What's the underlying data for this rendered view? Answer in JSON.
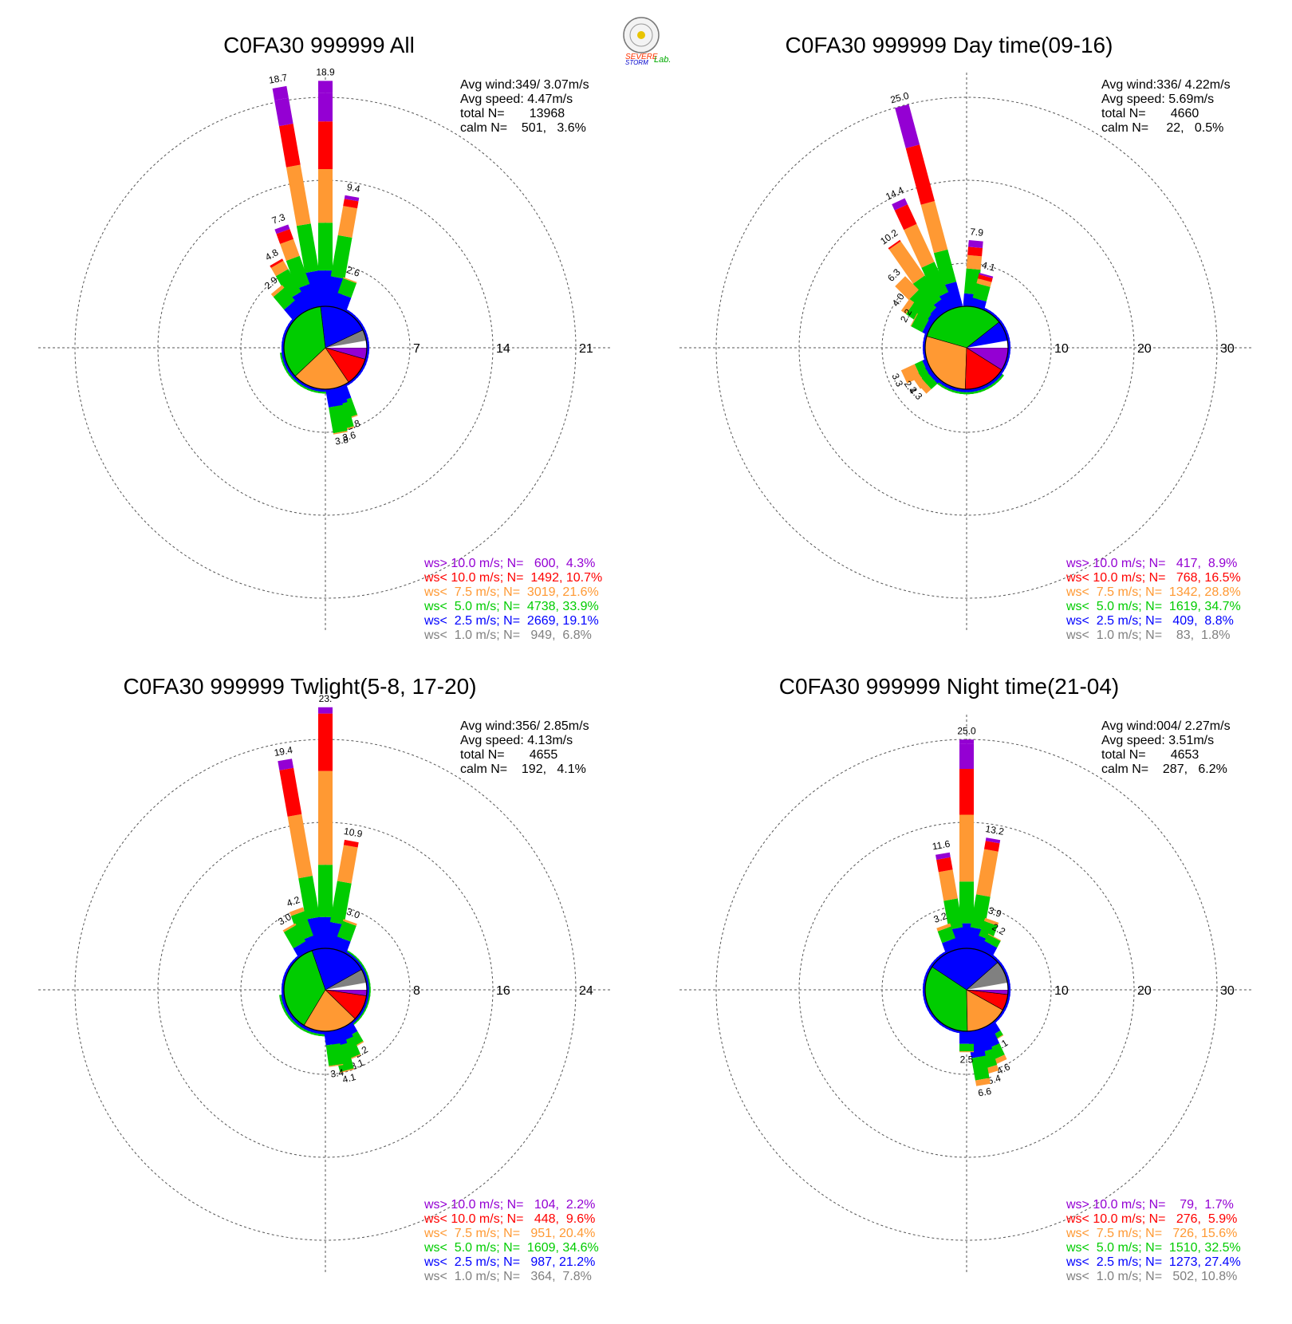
{
  "logo": {
    "line1": "SEVERE",
    "line2": "STORM",
    "line3": "Lab."
  },
  "colors": {
    "purple": "#9400d3",
    "red": "#ff0000",
    "orange": "#ff9933",
    "green": "#00cc00",
    "blue": "#0000ff",
    "gray": "#808080",
    "grid": "#555555",
    "text": "#000000"
  },
  "chart_data": [
    {
      "type": "wind-rose",
      "title": "C0FA30 999999 All",
      "stats": [
        "Avg wind:349/ 3.07m/s",
        "Avg speed: 4.47m/s",
        "total N=       13968",
        "calm N=    501,   3.6%"
      ],
      "ring_labels": [
        "7",
        "14",
        "21"
      ],
      "rmax": 21,
      "bins": [
        {
          "label": "ws> 10.0 m/s; N=   600,  4.3%",
          "color": "purple"
        },
        {
          "label": "ws< 10.0 m/s; N=  1492, 10.7%",
          "color": "red"
        },
        {
          "label": "ws<  7.5 m/s; N=  3019, 21.6%",
          "color": "orange"
        },
        {
          "label": "ws<  5.0 m/s; N=  4738, 33.9%",
          "color": "green"
        },
        {
          "label": "ws<  2.5 m/s; N=  2669, 19.1%",
          "color": "blue"
        },
        {
          "label": "ws<  1.0 m/s; N=   949,  6.8%",
          "color": "gray"
        }
      ],
      "pie": [
        6.8,
        19.1,
        33.9,
        21.6,
        10.7,
        4.3
      ],
      "bars": [
        {
          "dir": 350,
          "segments": [
            3.0,
            4.0,
            5.0,
            3.5,
            2.2,
            1.0
          ],
          "label": "18.7"
        },
        {
          "dir": 0,
          "segments": [
            3.0,
            4.0,
            4.5,
            4.0,
            2.4,
            1.0
          ],
          "label": "18.9"
        },
        {
          "dir": 10,
          "segments": [
            2.5,
            3.5,
            2.5,
            0.6,
            0.3
          ],
          "label": "9.4"
        },
        {
          "dir": 20,
          "segments": [
            1.2,
            1.3,
            0.1
          ],
          "label": "2.6"
        },
        {
          "dir": 340,
          "segments": [
            2.0,
            2.5,
            1.5,
            0.9,
            0.4
          ],
          "label": "7.3"
        },
        {
          "dir": 330,
          "segments": [
            1.6,
            2.2,
            0.8,
            0.2
          ],
          "label": "4.8"
        },
        {
          "dir": 320,
          "segments": [
            1.2,
            1.4,
            0.3
          ],
          "label": "2.9"
        },
        {
          "dir": 160,
          "segments": [
            1.2,
            1.5,
            0.1
          ],
          "label": "2.8"
        },
        {
          "dir": 165,
          "segments": [
            1.4,
            2.1,
            0.1
          ],
          "label": "3.6"
        },
        {
          "dir": 170,
          "segments": [
            1.5,
            2.2,
            0.1
          ],
          "label": "3.8"
        }
      ],
      "minor": [
        {
          "from": 25,
          "to": 150,
          "step": 5,
          "value": 0.4
        },
        {
          "from": 175,
          "to": 260,
          "step": 5,
          "value": 0.6
        },
        {
          "from": 260,
          "to": 315,
          "step": 5,
          "value": 0.3
        }
      ]
    },
    {
      "type": "wind-rose",
      "title": "C0FA30 999999 Day time(09-16)",
      "stats": [
        "Avg wind:336/ 4.22m/s",
        "Avg speed: 5.69m/s",
        "total N=       4660",
        "calm N=     22,   0.5%"
      ],
      "ring_labels": [
        "10",
        "20",
        "30"
      ],
      "rmax": 30,
      "bins": [
        {
          "label": "ws> 10.0 m/s; N=   417,  8.9%",
          "color": "purple"
        },
        {
          "label": "ws< 10.0 m/s; N=   768, 16.5%",
          "color": "red"
        },
        {
          "label": "ws<  7.5 m/s; N=  1342, 28.8%",
          "color": "orange"
        },
        {
          "label": "ws<  5.0 m/s; N=  1619, 34.7%",
          "color": "green"
        },
        {
          "label": "ws<  2.5 m/s; N=   409,  8.8%",
          "color": "blue"
        },
        {
          "label": "ws<  1.0 m/s; N=    83,  1.8%",
          "color": "gray"
        }
      ],
      "pie": [
        1.8,
        8.8,
        34.7,
        28.8,
        16.5,
        8.9
      ],
      "bars": [
        {
          "dir": 345,
          "segments": [
            3.0,
            4.0,
            6.0,
            7.0,
            5.0
          ],
          "label": "25.0"
        },
        {
          "dir": 335,
          "segments": [
            2.0,
            4.0,
            5.0,
            2.6,
            0.8
          ],
          "label": "14.4"
        },
        {
          "dir": 325,
          "segments": [
            1.5,
            3.5,
            5.0,
            0.2
          ],
          "label": "10.2"
        },
        {
          "dir": 315,
          "segments": [
            1.0,
            3.0,
            2.3
          ],
          "label": "6.3"
        },
        {
          "dir": 305,
          "segments": [
            0.8,
            2.5,
            0.7
          ],
          "label": "4.0"
        },
        {
          "dir": 298,
          "segments": [
            0.6,
            1.5,
            0.1
          ],
          "label": "2.2"
        },
        {
          "dir": 5,
          "segments": [
            1.5,
            3.0,
            1.6,
            1.0,
            0.8
          ],
          "label": "7.9"
        },
        {
          "dir": 15,
          "segments": [
            1.0,
            1.8,
            0.6,
            0.5,
            0.2
          ],
          "label": "4.1"
        },
        {
          "dir": 245,
          "segments": [
            0.5,
            1.0,
            1.8
          ],
          "label": "3.3"
        },
        {
          "dir": 235,
          "segments": [
            0.5,
            1.0,
            0.9
          ],
          "label": "2.4"
        },
        {
          "dir": 228,
          "segments": [
            0.5,
            1.0,
            0.8
          ],
          "label": "2.3"
        }
      ],
      "minor": [
        {
          "from": 25,
          "to": 130,
          "step": 5,
          "value": 0.3
        },
        {
          "from": 130,
          "to": 220,
          "step": 5,
          "value": 1.0
        },
        {
          "from": 250,
          "to": 290,
          "step": 5,
          "value": 0.5
        }
      ]
    },
    {
      "type": "wind-rose",
      "title": "C0FA30 999999 Twlight(5-8, 17-20)",
      "stats": [
        "Avg wind:356/ 2.85m/s",
        "Avg speed: 4.13m/s",
        "total N=       4655",
        "calm N=    192,   4.1%"
      ],
      "ring_labels": [
        "8",
        "16",
        "24"
      ],
      "rmax": 24,
      "bins": [
        {
          "label": "ws> 10.0 m/s; N=   104,  2.2%",
          "color": "purple"
        },
        {
          "label": "ws< 10.0 m/s; N=   448,  9.6%",
          "color": "red"
        },
        {
          "label": "ws<  7.5 m/s; N=   951, 20.4%",
          "color": "orange"
        },
        {
          "label": "ws<  5.0 m/s; N=  1609, 34.6%",
          "color": "green"
        },
        {
          "label": "ws<  2.5 m/s; N=   987, 21.2%",
          "color": "blue"
        },
        {
          "label": "ws<  1.0 m/s; N=   364,  7.8%",
          "color": "gray"
        }
      ],
      "pie": [
        7.8,
        21.2,
        34.6,
        20.4,
        9.6,
        2.2
      ],
      "bars": [
        {
          "dir": 0,
          "segments": [
            3.0,
            5.0,
            9.0,
            5.5,
            0.6
          ],
          "label": "23."
        },
        {
          "dir": 350,
          "segments": [
            3.0,
            4.0,
            6.0,
            4.5,
            0.9
          ],
          "label": "19.4"
        },
        {
          "dir": 10,
          "segments": [
            2.5,
            4.0,
            3.5,
            0.5
          ],
          "label": "10.9"
        },
        {
          "dir": 340,
          "segments": [
            1.3,
            2.5,
            0.4
          ],
          "label": "4.2"
        },
        {
          "dir": 330,
          "segments": [
            1.0,
            1.8,
            0.2
          ],
          "label": "3.0"
        },
        {
          "dir": 20,
          "segments": [
            1.2,
            1.6,
            0.2
          ],
          "label": "3.0"
        },
        {
          "dir": 150,
          "segments": [
            1.0,
            1.1,
            0.1
          ],
          "label": "2.2"
        },
        {
          "dir": 157,
          "segments": [
            1.2,
            1.8,
            0.1
          ],
          "label": "3.1"
        },
        {
          "dir": 165,
          "segments": [
            1.5,
            2.5,
            0.1
          ],
          "label": "4.1"
        },
        {
          "dir": 172,
          "segments": [
            1.3,
            2.0,
            0.1
          ],
          "label": "3.4"
        }
      ],
      "minor": [
        {
          "from": 25,
          "to": 145,
          "step": 5,
          "value": 0.6
        },
        {
          "from": 180,
          "to": 260,
          "step": 5,
          "value": 0.8
        },
        {
          "from": 260,
          "to": 325,
          "step": 5,
          "value": 0.5
        }
      ]
    },
    {
      "type": "wind-rose",
      "title": "C0FA30 999999 Night time(21-04)",
      "stats": [
        "Avg wind:004/ 2.27m/s",
        "Avg speed: 3.51m/s",
        "total N=       4653",
        "calm N=    287,   6.2%"
      ],
      "ring_labels": [
        "10",
        "20",
        "30"
      ],
      "rmax": 30,
      "bins": [
        {
          "label": "ws> 10.0 m/s; N=    79,  1.7%",
          "color": "purple"
        },
        {
          "label": "ws< 10.0 m/s; N=   276,  5.9%",
          "color": "red"
        },
        {
          "label": "ws<  7.5 m/s; N=   726, 15.6%",
          "color": "orange"
        },
        {
          "label": "ws<  5.0 m/s; N=  1510, 32.5%",
          "color": "green"
        },
        {
          "label": "ws<  2.5 m/s; N=  1273, 27.4%",
          "color": "blue"
        },
        {
          "label": "ws<  1.0 m/s; N=   502, 10.8%",
          "color": "gray"
        }
      ],
      "pie": [
        10.8,
        27.4,
        32.5,
        15.6,
        5.9,
        1.7
      ],
      "bars": [
        {
          "dir": 0,
          "segments": [
            3.0,
            5.0,
            8.0,
            5.5,
            3.0,
            0.5
          ],
          "label": "25.0"
        },
        {
          "dir": 10,
          "segments": [
            2.5,
            4.0,
            5.5,
            1.0,
            0.4
          ],
          "label": "13.2"
        },
        {
          "dir": 350,
          "segments": [
            2.5,
            3.5,
            3.5,
            1.5,
            0.6
          ],
          "label": "11.6"
        },
        {
          "dir": 340,
          "segments": [
            1.3,
            1.5,
            0.4
          ],
          "label": "3.2"
        },
        {
          "dir": 20,
          "segments": [
            1.6,
            1.9,
            0.4
          ],
          "label": "3.9"
        },
        {
          "dir": 28,
          "segments": [
            1.2,
            0.9,
            0.1
          ],
          "label": "2.2"
        },
        {
          "dir": 148,
          "segments": [
            1.3,
            0.6,
            0.1
          ],
          "label": "2.1"
        },
        {
          "dir": 155,
          "segments": [
            2.5,
            1.5,
            0.6
          ],
          "label": "4.6"
        },
        {
          "dir": 163,
          "segments": [
            2.7,
            2.0,
            0.7
          ],
          "label": "5.4"
        },
        {
          "dir": 170,
          "segments": [
            3.2,
            2.7,
            0.7
          ],
          "label": "6.6"
        },
        {
          "dir": 180,
          "segments": [
            1.5,
            0.9,
            0.1
          ],
          "label": "2.5"
        }
      ],
      "minor": [
        {
          "from": 35,
          "to": 140,
          "step": 5,
          "value": 0.5
        },
        {
          "from": 185,
          "to": 335,
          "step": 5,
          "value": 0.4
        }
      ]
    }
  ]
}
